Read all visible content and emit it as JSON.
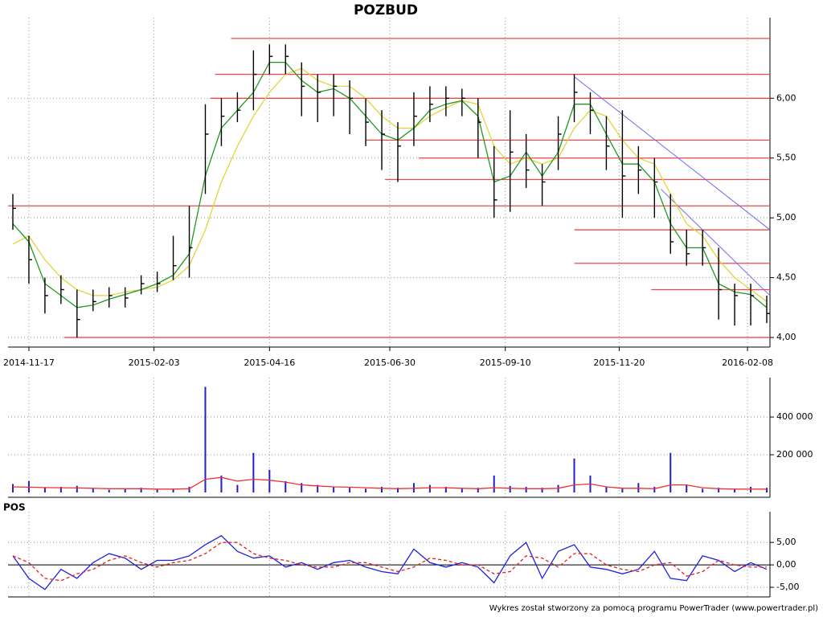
{
  "chart_data": [
    {
      "type": "ohlc",
      "title": "POZBUD",
      "x": [
        "2014-11-07",
        "2014-11-17",
        "2014-11-27",
        "2014-12-07",
        "2014-12-17",
        "2014-12-27",
        "2015-01-06",
        "2015-01-16",
        "2015-01-26",
        "2015-02-05",
        "2015-02-15",
        "2015-02-25",
        "2015-03-07",
        "2015-03-17",
        "2015-03-27",
        "2015-04-06",
        "2015-04-16",
        "2015-04-26",
        "2015-05-06",
        "2015-05-16",
        "2015-05-26",
        "2015-06-05",
        "2015-06-15",
        "2015-06-25",
        "2015-07-05",
        "2015-07-15",
        "2015-07-25",
        "2015-08-04",
        "2015-08-14",
        "2015-08-24",
        "2015-09-03",
        "2015-09-13",
        "2015-09-23",
        "2015-10-03",
        "2015-10-13",
        "2015-10-23",
        "2015-11-02",
        "2015-11-12",
        "2015-11-22",
        "2015-12-02",
        "2015-12-12",
        "2015-12-22",
        "2016-01-01",
        "2016-01-11",
        "2016-01-21",
        "2016-01-31",
        "2016-02-10",
        "2016-02-20"
      ],
      "high": [
        5.2,
        4.85,
        4.5,
        4.52,
        4.4,
        4.4,
        4.42,
        4.42,
        4.52,
        4.55,
        4.85,
        5.1,
        5.95,
        6.0,
        6.05,
        6.4,
        6.45,
        6.45,
        6.3,
        6.2,
        6.2,
        6.15,
        6.0,
        5.9,
        5.8,
        6.05,
        6.1,
        6.1,
        6.08,
        6.0,
        5.6,
        5.9,
        5.7,
        5.45,
        5.85,
        6.2,
        6.05,
        5.85,
        5.9,
        5.6,
        5.5,
        5.2,
        4.9,
        4.9,
        4.75,
        4.45,
        4.45,
        4.35
      ],
      "low": [
        4.9,
        4.45,
        4.2,
        4.28,
        4.0,
        4.22,
        4.25,
        4.25,
        4.36,
        4.38,
        4.48,
        4.5,
        5.2,
        5.6,
        5.8,
        5.9,
        6.2,
        6.2,
        5.85,
        5.8,
        5.85,
        5.7,
        5.6,
        5.4,
        5.3,
        5.6,
        5.8,
        5.85,
        5.85,
        5.5,
        5.0,
        5.05,
        5.25,
        5.1,
        5.4,
        5.8,
        5.7,
        5.4,
        5.0,
        5.2,
        5.0,
        4.7,
        4.6,
        4.6,
        4.15,
        4.1,
        4.1,
        4.12
      ],
      "close": [
        5.08,
        4.65,
        4.35,
        4.4,
        4.15,
        4.3,
        4.35,
        4.33,
        4.45,
        4.45,
        4.6,
        4.75,
        5.7,
        5.85,
        5.9,
        6.2,
        6.35,
        6.35,
        6.1,
        6.05,
        6.1,
        6.0,
        5.8,
        5.7,
        5.6,
        5.85,
        5.95,
        6.0,
        6.0,
        5.8,
        5.15,
        5.55,
        5.4,
        5.3,
        5.7,
        6.05,
        5.9,
        5.6,
        5.35,
        5.4,
        5.3,
        4.8,
        4.7,
        4.75,
        4.4,
        4.35,
        4.35,
        4.2
      ],
      "bar_color": "#000000",
      "series": [
        {
          "color": "#1f9a1f",
          "values": [
            4.95,
            4.8,
            4.45,
            4.35,
            4.25,
            4.27,
            4.32,
            4.36,
            4.4,
            4.45,
            4.52,
            4.7,
            5.35,
            5.75,
            5.9,
            6.05,
            6.3,
            6.3,
            6.15,
            6.05,
            6.08,
            6.0,
            5.85,
            5.7,
            5.65,
            5.75,
            5.9,
            5.95,
            5.98,
            5.85,
            5.3,
            5.35,
            5.55,
            5.35,
            5.55,
            5.95,
            5.95,
            5.7,
            5.45,
            5.45,
            5.3,
            4.95,
            4.75,
            4.75,
            4.45,
            4.38,
            4.36,
            4.25
          ]
        },
        {
          "color": "#e2d43c",
          "values": [
            4.78,
            4.85,
            4.65,
            4.5,
            4.4,
            4.35,
            4.35,
            4.38,
            4.4,
            4.42,
            4.48,
            4.6,
            4.9,
            5.3,
            5.6,
            5.85,
            6.05,
            6.2,
            6.25,
            6.15,
            6.1,
            6.1,
            6.0,
            5.85,
            5.75,
            5.75,
            5.85,
            5.92,
            5.98,
            5.95,
            5.6,
            5.45,
            5.5,
            5.45,
            5.5,
            5.75,
            5.9,
            5.85,
            5.65,
            5.5,
            5.45,
            5.2,
            4.95,
            4.85,
            4.65,
            4.5,
            4.4,
            4.3
          ]
        }
      ],
      "levels": [
        {
          "from": "2015-03-23",
          "value": 6.5
        },
        {
          "from": "2015-03-13",
          "value": 6.2
        },
        {
          "from": "2015-03-10",
          "value": 6.0
        },
        {
          "from": "2015-06-15",
          "value": 5.65
        },
        {
          "from": "2015-07-18",
          "value": 5.5
        },
        {
          "from": "2015-06-27",
          "value": 5.32
        },
        {
          "from": "2014-11-04",
          "value": 5.1
        },
        {
          "from": "2015-10-23",
          "value": 4.9
        },
        {
          "from": "2015-10-23",
          "value": 4.62
        },
        {
          "from": "2015-12-10",
          "value": 4.4
        },
        {
          "from": "2014-12-09",
          "value": 4.0
        }
      ],
      "level_color": "#f04848",
      "trendlines": [
        {
          "start": "2015-10-23",
          "start_value": 6.18,
          "end": "2016-02-22",
          "end_value": 4.9
        },
        {
          "start": "2015-12-16",
          "start_value": 5.24,
          "end": "2016-02-22",
          "end_value": 4.35
        }
      ],
      "trend_color": "#6a6af0",
      "xlim": [
        "2014-11-04",
        "2016-02-22"
      ],
      "xticks": [
        "2014-11-17",
        "2015-02-03",
        "2015-04-16",
        "2015-06-30",
        "2015-09-10",
        "2015-11-20",
        "2016-02-08"
      ],
      "ylim": [
        3.96,
        6.62
      ],
      "yticks": [
        {
          "value": 4,
          "label": "4,00"
        },
        {
          "value": 4.5,
          "label": "4,50"
        },
        {
          "value": 5,
          "label": "5,00"
        },
        {
          "value": 5.5,
          "label": "5,50"
        },
        {
          "value": 6,
          "label": "6,00"
        }
      ],
      "grid": true
    },
    {
      "type": "bar",
      "x": [
        "2014-11-07",
        "2014-11-17",
        "2014-11-27",
        "2014-12-07",
        "2014-12-17",
        "2014-12-27",
        "2015-01-06",
        "2015-01-16",
        "2015-01-26",
        "2015-02-05",
        "2015-02-15",
        "2015-02-25",
        "2015-03-07",
        "2015-03-17",
        "2015-03-27",
        "2015-04-06",
        "2015-04-16",
        "2015-04-26",
        "2015-05-06",
        "2015-05-16",
        "2015-05-26",
        "2015-06-05",
        "2015-06-15",
        "2015-06-25",
        "2015-07-05",
        "2015-07-15",
        "2015-07-25",
        "2015-08-04",
        "2015-08-14",
        "2015-08-24",
        "2015-09-03",
        "2015-09-13",
        "2015-09-23",
        "2015-10-03",
        "2015-10-13",
        "2015-10-23",
        "2015-11-02",
        "2015-11-12",
        "2015-11-22",
        "2015-12-02",
        "2015-12-12",
        "2015-12-22",
        "2016-01-01",
        "2016-01-11",
        "2016-01-21",
        "2016-01-31",
        "2016-02-10",
        "2016-02-20"
      ],
      "values": [
        45000,
        60000,
        25000,
        30000,
        35000,
        20000,
        15000,
        20000,
        25000,
        15000,
        20000,
        30000,
        560000,
        90000,
        40000,
        210000,
        120000,
        60000,
        50000,
        40000,
        30000,
        25000,
        20000,
        30000,
        25000,
        50000,
        40000,
        30000,
        20000,
        25000,
        90000,
        35000,
        30000,
        25000,
        40000,
        180000,
        90000,
        30000,
        25000,
        50000,
        30000,
        210000,
        40000,
        20000,
        25000,
        20000,
        30000,
        25000
      ],
      "color": "#2020c8",
      "series": [
        {
          "color": "#f03030",
          "values": [
            30000,
            28000,
            26000,
            25000,
            24000,
            22000,
            20000,
            20000,
            20000,
            18000,
            18000,
            20000,
            70000,
            80000,
            60000,
            70000,
            65000,
            55000,
            40000,
            35000,
            30000,
            28000,
            25000,
            22000,
            20000,
            22000,
            25000,
            25000,
            22000,
            20000,
            25000,
            22000,
            20000,
            20000,
            22000,
            40000,
            45000,
            30000,
            22000,
            22000,
            20000,
            40000,
            40000,
            25000,
            20000,
            18000,
            18000,
            18000
          ]
        }
      ],
      "xlim": [
        "2014-11-04",
        "2016-02-22"
      ],
      "ylim": [
        0,
        575000
      ],
      "yticks": [
        {
          "value": 200000,
          "label": "200 000"
        },
        {
          "value": 400000,
          "label": "400 000"
        }
      ],
      "grid": true
    },
    {
      "type": "line",
      "title": "POS",
      "x": [
        "2014-11-07",
        "2014-11-17",
        "2014-11-27",
        "2014-12-07",
        "2014-12-17",
        "2014-12-27",
        "2015-01-06",
        "2015-01-16",
        "2015-01-26",
        "2015-02-05",
        "2015-02-15",
        "2015-02-25",
        "2015-03-07",
        "2015-03-17",
        "2015-03-27",
        "2015-04-06",
        "2015-04-16",
        "2015-04-26",
        "2015-05-06",
        "2015-05-16",
        "2015-05-26",
        "2015-06-05",
        "2015-06-15",
        "2015-06-25",
        "2015-07-05",
        "2015-07-15",
        "2015-07-25",
        "2015-08-04",
        "2015-08-14",
        "2015-08-24",
        "2015-09-03",
        "2015-09-13",
        "2015-09-23",
        "2015-10-03",
        "2015-10-13",
        "2015-10-23",
        "2015-11-02",
        "2015-11-12",
        "2015-11-22",
        "2015-12-02",
        "2015-12-12",
        "2015-12-22",
        "2016-01-01",
        "2016-01-11",
        "2016-01-21",
        "2016-01-31",
        "2016-02-10",
        "2016-02-20"
      ],
      "series": [
        {
          "color": "#2020e0",
          "values": [
            2.0,
            -3.0,
            -5.5,
            -1.0,
            -3.0,
            0.5,
            2.5,
            1.5,
            -1.0,
            1.0,
            1.0,
            2.0,
            4.5,
            6.5,
            3.0,
            1.5,
            2.0,
            -0.5,
            0.5,
            -1.0,
            0.5,
            1.0,
            -0.5,
            -1.5,
            -2.0,
            3.5,
            0.5,
            -0.5,
            0.5,
            -0.5,
            -4.0,
            2.0,
            5.0,
            -3.0,
            3.0,
            4.5,
            -0.5,
            -1.0,
            -2.0,
            -1.0,
            3.0,
            -3.0,
            -3.5,
            2.0,
            1.0,
            -1.5,
            0.5,
            -1.0
          ]
        },
        {
          "color": "#e02020",
          "dashed": true,
          "values": [
            2.0,
            0.5,
            -3.0,
            -3.5,
            -2.0,
            -1.0,
            1.0,
            2.0,
            0.5,
            -0.5,
            0.5,
            1.0,
            2.5,
            5.0,
            5.0,
            2.5,
            1.5,
            1.0,
            0.0,
            -0.5,
            -0.5,
            0.5,
            0.5,
            -0.5,
            -1.5,
            -0.5,
            1.5,
            1.0,
            0.0,
            0.0,
            -2.0,
            -1.5,
            2.0,
            1.5,
            -0.5,
            2.5,
            2.5,
            0.0,
            -1.0,
            -1.5,
            0.0,
            0.5,
            -2.5,
            -1.5,
            1.0,
            0.0,
            -0.5,
            -0.5
          ]
        }
      ],
      "xlim": [
        "2014-11-04",
        "2016-02-22"
      ],
      "ylim": [
        -7.5,
        10.4
      ],
      "yticks": [
        {
          "value": -5,
          "label": "-5,00"
        },
        {
          "value": 0,
          "label": "0,00"
        },
        {
          "value": 5,
          "label": "5,00"
        }
      ],
      "grid": true
    }
  ],
  "footer": "Wykres został stworzony za pomocą programu PowerTrader (www.powertrader.pl)"
}
